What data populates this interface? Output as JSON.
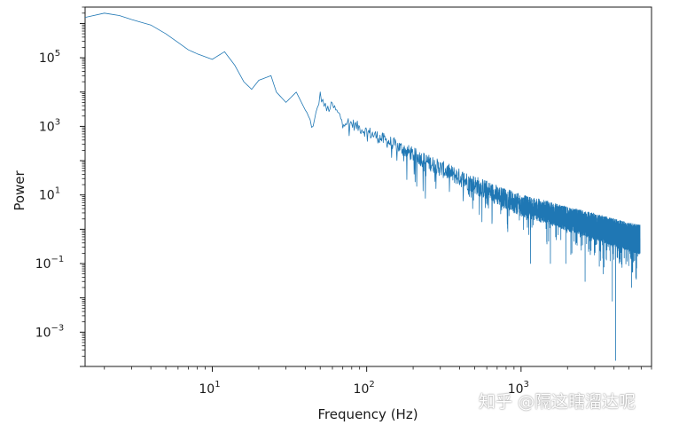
{
  "chart_data": {
    "type": "line",
    "xlabel": "Frequency (Hz)",
    "ylabel": "Power",
    "xscale": "log",
    "yscale": "log",
    "xlim": [
      1.5,
      7000
    ],
    "ylim": [
      0.0001,
      3000000
    ],
    "grid": false,
    "x_ticks": [
      {
        "base": "10",
        "exp": "1",
        "value": 10
      },
      {
        "base": "10",
        "exp": "2",
        "value": 100
      },
      {
        "base": "10",
        "exp": "3",
        "value": 1000
      }
    ],
    "y_ticks": [
      {
        "base": "10",
        "exp": "5",
        "value": 100000
      },
      {
        "base": "10",
        "exp": "3",
        "value": 1000
      },
      {
        "base": "10",
        "exp": "1",
        "value": 10
      },
      {
        "base": "10",
        "exp": "−1",
        "value": 0.1
      },
      {
        "base": "10",
        "exp": "−3",
        "value": 0.001
      }
    ],
    "series": [
      {
        "color": "#1f77b4",
        "trend_points": [
          [
            1.5,
            1500000
          ],
          [
            2.0,
            2000000
          ],
          [
            2.5,
            1700000
          ],
          [
            3.0,
            1300000
          ],
          [
            4.0,
            900000
          ],
          [
            5.0,
            500000
          ],
          [
            6.0,
            280000
          ],
          [
            7.0,
            170000
          ],
          [
            8.0,
            130000
          ],
          [
            10.0,
            90000
          ],
          [
            12.0,
            150000
          ],
          [
            14.0,
            60000
          ],
          [
            16.0,
            20000
          ],
          [
            18.0,
            12000
          ],
          [
            20.0,
            22000
          ],
          [
            24.0,
            30000
          ],
          [
            26.0,
            10000
          ],
          [
            30.0,
            5000
          ],
          [
            35.0,
            10000
          ],
          [
            40.0,
            3000
          ],
          [
            45.0,
            900
          ],
          [
            50.0,
            8000
          ],
          [
            55.0,
            3000
          ],
          [
            60.0,
            4000
          ],
          [
            70.0,
            1500
          ],
          [
            80.0,
            1200
          ],
          [
            100.0,
            700
          ],
          [
            150.0,
            300
          ],
          [
            200.0,
            150
          ],
          [
            300.0,
            60
          ],
          [
            500.0,
            20
          ],
          [
            700.0,
            10
          ],
          [
            1000.0,
            5
          ],
          [
            1500.0,
            3
          ],
          [
            2000.0,
            2
          ],
          [
            3000.0,
            1.2
          ],
          [
            5000.0,
            0.6
          ],
          [
            5900.0,
            0.5
          ]
        ],
        "noise_start_hz": 40,
        "deep_dips": [
          [
            240,
            8
          ],
          [
            1150,
            0.1
          ],
          [
            1550,
            0.1
          ],
          [
            1950,
            0.1
          ],
          [
            2600,
            0.03
          ],
          [
            3400,
            0.05
          ],
          [
            3900,
            0.008
          ],
          [
            4100,
            0.00015
          ],
          [
            5200,
            0.02
          ]
        ]
      }
    ]
  },
  "watermark": "知乎 @隔这瞎溜达呢"
}
